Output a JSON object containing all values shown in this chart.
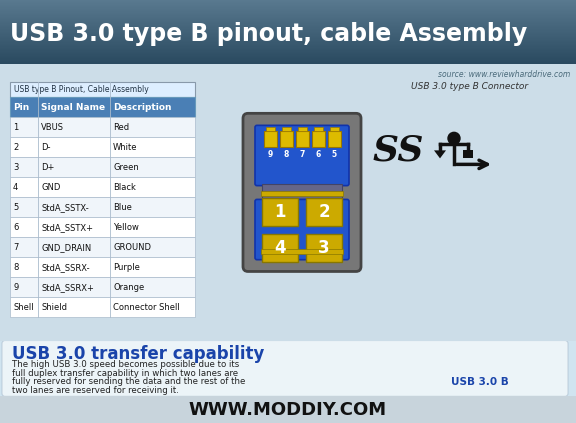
{
  "title": "USB 3.0 type B pinout, cable Assembly",
  "title_color": "#ffffff",
  "title_bg_top": "#5a7a90",
  "title_bg_bot": "#2a4a60",
  "source_text": "source: www.reviewharddrive.com",
  "table_title": "USB type B Pinout, Cable Assembly",
  "table_header": [
    "Pin",
    "Signal Name",
    "Description"
  ],
  "table_header_bg": "#4a7fb5",
  "table_header_color": "#ffffff",
  "table_rows": [
    [
      "1",
      "VBUS",
      "Red"
    ],
    [
      "2",
      "D-",
      "White"
    ],
    [
      "3",
      "D+",
      "Green"
    ],
    [
      "4",
      "GND",
      "Black"
    ],
    [
      "5",
      "StdA_SSTX-",
      "Blue"
    ],
    [
      "6",
      "StdA_SSTX+",
      "Yellow"
    ],
    [
      "7",
      "GND_DRAIN",
      "GROUND"
    ],
    [
      "8",
      "StdA_SSRX-",
      "Purple"
    ],
    [
      "9",
      "StdA_SSRX+",
      "Orange"
    ],
    [
      "Shell",
      "Shield",
      "Connector Shell"
    ]
  ],
  "table_bg_alt": "#f0f5fa",
  "table_bg_norm": "#ffffff",
  "connector_label": "USB 3.0 type B Connector",
  "usb_b_label": "USB 3.0 B",
  "bottom_bg": "#d0e4f0",
  "bottom_title": "USB 3.0 transfer capability",
  "bottom_title_color": "#1a44aa",
  "bottom_text_line1": "The high USB 3.0 speed becomes possible due to its",
  "bottom_text_line2": "full duplex transfer capability in which two lanes are",
  "bottom_text_line3": "fully reserved for sending the data and the rest of the",
  "bottom_text_line4": "two lanes are reserved for receiving it.",
  "footer_text": "WWW.MODDIY.COM",
  "footer_bg": "#c8d4dc",
  "main_bg": "#ccdde8",
  "connector_bg": "#2255cc",
  "connector_shell": "#888888",
  "pin_color": "#ccaa00",
  "pin_color_top": "#ddbb00"
}
